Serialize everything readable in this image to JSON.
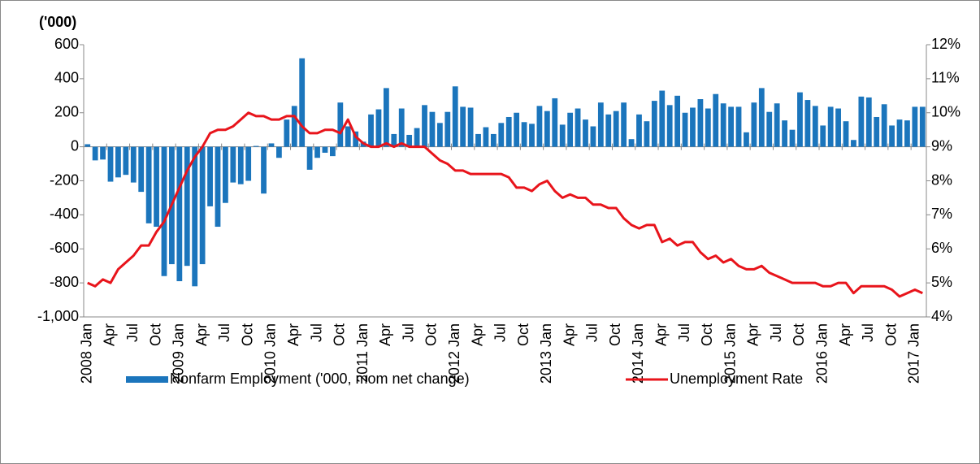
{
  "chart_data": {
    "type": "bar-line",
    "y_axis_label": "('000)",
    "categories": [
      "2008 Jan",
      null,
      null,
      "Apr",
      null,
      null,
      "Jul",
      null,
      null,
      "Oct",
      null,
      null,
      "2009 Jan",
      null,
      null,
      "Apr",
      null,
      null,
      "Jul",
      null,
      null,
      "Oct",
      null,
      null,
      "2010 Jan",
      null,
      null,
      "Apr",
      null,
      null,
      "Jul",
      null,
      null,
      "Oct",
      null,
      null,
      "2011 Jan",
      null,
      null,
      "Apr",
      null,
      null,
      "Jul",
      null,
      null,
      "Oct",
      null,
      null,
      "2012 Jan",
      null,
      null,
      "Apr",
      null,
      null,
      "Jul",
      null,
      null,
      "Oct",
      null,
      null,
      "2013 Jan",
      null,
      null,
      "Apr",
      null,
      null,
      "Jul",
      null,
      null,
      "Oct",
      null,
      null,
      "2014 Jan",
      null,
      null,
      "Apr",
      null,
      null,
      "Jul",
      null,
      null,
      "Oct",
      null,
      null,
      "2015 Jan",
      null,
      null,
      "Apr",
      null,
      null,
      "Jul",
      null,
      null,
      "Oct",
      null,
      null,
      "2016 Jan",
      null,
      null,
      "Apr",
      null,
      null,
      "Jul",
      null,
      null,
      "Oct",
      null,
      null,
      "2017 Jan",
      null
    ],
    "series": [
      {
        "name": "Nonfarm Employment ('000, mom net change)",
        "type": "bar",
        "color": "#1b75bc",
        "axis": "y",
        "values": [
          15,
          -80,
          -75,
          -205,
          -180,
          -165,
          -210,
          -265,
          -450,
          -470,
          -760,
          -690,
          -790,
          -700,
          -820,
          -690,
          -350,
          -470,
          -330,
          -210,
          -220,
          -200,
          5,
          -275,
          20,
          -65,
          160,
          240,
          520,
          -135,
          -65,
          -35,
          -55,
          260,
          120,
          90,
          30,
          190,
          220,
          345,
          75,
          225,
          70,
          110,
          245,
          205,
          140,
          205,
          355,
          235,
          230,
          75,
          115,
          75,
          140,
          175,
          200,
          145,
          135,
          240,
          210,
          285,
          130,
          200,
          225,
          160,
          120,
          260,
          190,
          210,
          260,
          45,
          190,
          150,
          270,
          330,
          245,
          300,
          200,
          230,
          280,
          225,
          310,
          255,
          235,
          235,
          85,
          260,
          345,
          205,
          255,
          155,
          100,
          320,
          275,
          240,
          125,
          235,
          225,
          150,
          40,
          295,
          290,
          175,
          250,
          125,
          160,
          155,
          235,
          235
        ]
      },
      {
        "name": "Unemployment Rate",
        "type": "line",
        "color": "#e8141b",
        "axis": "y2",
        "values": [
          5.0,
          4.9,
          5.1,
          5.0,
          5.4,
          5.6,
          5.8,
          6.1,
          6.1,
          6.5,
          6.8,
          7.3,
          7.8,
          8.3,
          8.7,
          9.0,
          9.4,
          9.5,
          9.5,
          9.6,
          9.8,
          10.0,
          9.9,
          9.9,
          9.8,
          9.8,
          9.9,
          9.9,
          9.6,
          9.4,
          9.4,
          9.5,
          9.5,
          9.4,
          9.8,
          9.3,
          9.1,
          9.0,
          9.0,
          9.1,
          9.0,
          9.1,
          9.0,
          9.0,
          9.0,
          8.8,
          8.6,
          8.5,
          8.3,
          8.3,
          8.2,
          8.2,
          8.2,
          8.2,
          8.2,
          8.1,
          7.8,
          7.8,
          7.7,
          7.9,
          8.0,
          7.7,
          7.5,
          7.6,
          7.5,
          7.5,
          7.3,
          7.3,
          7.2,
          7.2,
          6.9,
          6.7,
          6.6,
          6.7,
          6.7,
          6.2,
          6.3,
          6.1,
          6.2,
          6.2,
          5.9,
          5.7,
          5.8,
          5.6,
          5.7,
          5.5,
          5.4,
          5.4,
          5.5,
          5.3,
          5.2,
          5.1,
          5.0,
          5.0,
          5.0,
          5.0,
          4.9,
          4.9,
          5.0,
          5.0,
          4.7,
          4.9,
          4.9,
          4.9,
          4.9,
          4.8,
          4.6,
          4.7,
          4.8,
          4.7
        ]
      }
    ],
    "ylim": [
      -1000,
      600
    ],
    "yticks": [
      {
        "value": -1000,
        "label": "-1,000"
      },
      -800,
      -600,
      -400,
      -200,
      0,
      200,
      400,
      600
    ],
    "y2lim": [
      4,
      12
    ],
    "y2ticks": [
      {
        "value": 4,
        "label": "4%"
      },
      {
        "value": 5,
        "label": "5%"
      },
      {
        "value": 6,
        "label": "6%"
      },
      {
        "value": 7,
        "label": "7%"
      },
      {
        "value": 8,
        "label": "8%"
      },
      {
        "value": 9,
        "label": "9%"
      },
      {
        "value": 10,
        "label": "10%"
      },
      {
        "value": 11,
        "label": "11%"
      },
      {
        "value": 12,
        "label": "12%"
      }
    ],
    "grid": false,
    "legend": "bottom"
  }
}
